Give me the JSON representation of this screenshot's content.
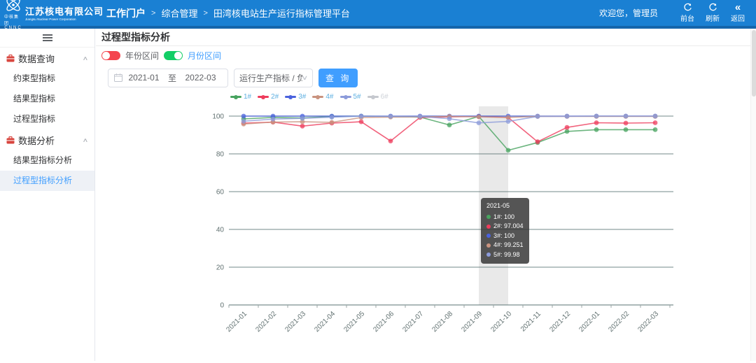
{
  "icons": {
    "chevron_up": "∧",
    "chevron_down": "∨",
    "back": "«",
    "breadcrumb_separator": ">"
  },
  "header": {
    "logo": {
      "group_cn": "中核集团",
      "group_en": "CNNC",
      "company_cn": "江苏核电有限公司",
      "company_en": "Jiangsu Nuclear Power Corporation"
    },
    "breadcrumb": [
      "工作门户",
      "综合管理",
      "田湾核电站生产运行指标管理平台"
    ],
    "welcome": "欢迎您，管理员",
    "actions": [
      {
        "label": "前台",
        "icon": "switch-icon"
      },
      {
        "label": "刷新",
        "icon": "refresh-icon"
      },
      {
        "label": "返回",
        "icon": "back-icon"
      }
    ]
  },
  "sidebar": {
    "groups": [
      {
        "label": "数据查询",
        "icon": "briefcase-icon",
        "items": [
          {
            "label": "约束型指标"
          },
          {
            "label": "结果型指标"
          },
          {
            "label": "过程型指标"
          }
        ]
      },
      {
        "label": "数据分析",
        "icon": "briefcase-icon",
        "items": [
          {
            "label": "结果型指标分析"
          },
          {
            "label": "过程型指标分析",
            "active": true
          }
        ]
      }
    ]
  },
  "main": {
    "page_title": "过程型指标分析",
    "toggles": [
      {
        "label": "年份区间",
        "on": false,
        "color": "#f4454e"
      },
      {
        "label": "月份区间",
        "on": true,
        "color": "#13ce66"
      }
    ],
    "filters": {
      "date_start": "2021-01",
      "date_separator": "至",
      "date_end": "2022-03",
      "indicator_select": "运行生产指标 / 负荷...",
      "search_button": "查 询"
    }
  },
  "chart_data": {
    "type": "line",
    "title": "",
    "xlabel": "",
    "ylabel": "",
    "ylim": [
      0,
      100
    ],
    "yticks": [
      0,
      20,
      40,
      60,
      80,
      100
    ],
    "grid": true,
    "grid_color": "#5a7373",
    "legend_position": "top",
    "legend_text_color": "#5fb0e1",
    "categories": [
      "2021-01",
      "2021-02",
      "2021-03",
      "2021-04",
      "2021-05",
      "2021-06",
      "2021-07",
      "2021-08",
      "2021-09",
      "2021-10",
      "2021-11",
      "2021-12",
      "2022-01",
      "2022-02",
      "2022-03"
    ],
    "series": [
      {
        "name": "1#",
        "color": "#47a35f",
        "disabled": false,
        "values": [
          98.5,
          99.3,
          99.0,
          99.8,
          100,
          99.8,
          99.5,
          95.3,
          99.8,
          81.9,
          86.0,
          91.9,
          92.8,
          92.8,
          92.8
        ]
      },
      {
        "name": "2#",
        "color": "#ee3c5c",
        "disabled": false,
        "values": [
          96.3,
          96.8,
          94.7,
          96.3,
          97.004,
          86.8,
          99.3,
          99.6,
          99.8,
          99.3,
          86.4,
          94.0,
          96.5,
          96.3,
          96.5
        ]
      },
      {
        "name": "3#",
        "color": "#4a62dd",
        "disabled": false,
        "values": [
          100,
          100,
          100,
          100,
          100,
          100,
          100,
          100,
          100,
          100,
          100,
          100,
          100,
          100,
          100
        ]
      },
      {
        "name": "4#",
        "color": "#c9937f",
        "disabled": false,
        "values": [
          95.8,
          96.8,
          97.0,
          96.7,
          99.251,
          99.5,
          99.6,
          99.8,
          99.6,
          99.3,
          99.8,
          99.8,
          99.8,
          99.8,
          99.8
        ]
      },
      {
        "name": "5#",
        "color": "#8c9bda",
        "disabled": false,
        "values": [
          97.3,
          98.4,
          98.8,
          99.4,
          99.98,
          99.9,
          99.8,
          98.6,
          96.4,
          97.2,
          99.8,
          99.9,
          100,
          100,
          100
        ]
      },
      {
        "name": "6#",
        "color": "#c5c8ce",
        "disabled": true,
        "values": []
      }
    ],
    "highlight_band": {
      "from_category": "2021-09",
      "to_category": "2021-10"
    },
    "tooltip": {
      "title": "2021-05",
      "rows": [
        {
          "label": "1#",
          "value": "100",
          "color": "#47a35f"
        },
        {
          "label": "2#",
          "value": "97.004",
          "color": "#ee3c5c"
        },
        {
          "label": "3#",
          "value": "100",
          "color": "#4a62dd"
        },
        {
          "label": "4#",
          "value": "99.251",
          "color": "#c9937f"
        },
        {
          "label": "5#",
          "value": "99.98",
          "color": "#8c9bda"
        }
      ]
    }
  }
}
